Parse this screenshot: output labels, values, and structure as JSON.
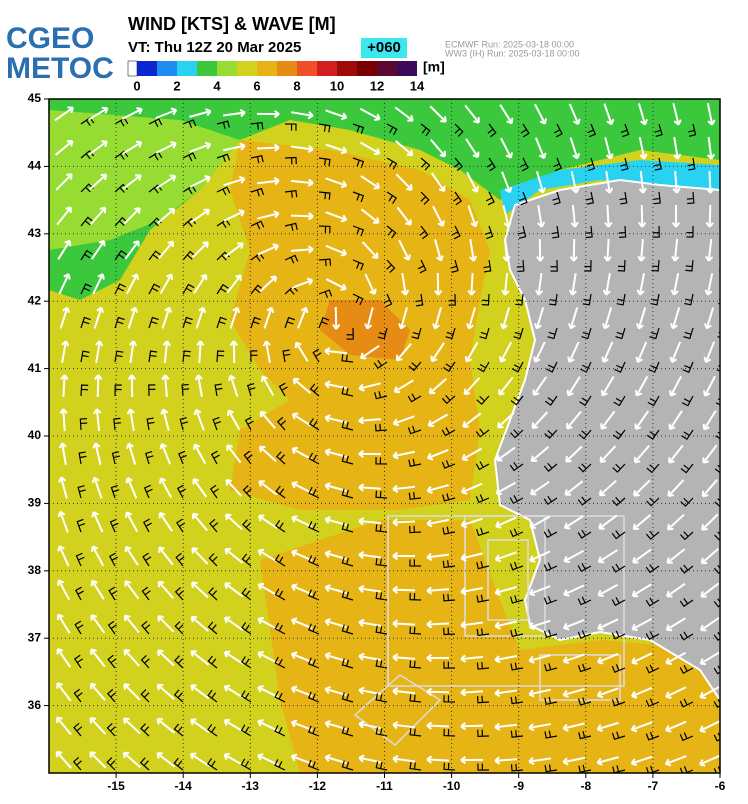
{
  "logo": [
    "CGEO",
    "METOC"
  ],
  "header": {
    "title": "WIND [KTS] & WAVE [M]",
    "valid_time": "VT: Thu 12Z 20 Mar 2025",
    "lead": "+060",
    "runs": [
      "ECMWF   Run: 2025-03-18 00:00",
      "WW3 (IH) Run: 2025-03-18 00:00"
    ]
  },
  "colorbar": {
    "unit": "[m]",
    "lim": [
      0,
      14
    ],
    "ticks": [
      0,
      2,
      4,
      6,
      8,
      10,
      12,
      14
    ],
    "colors": [
      "#0a28d2",
      "#1e8cf0",
      "#28d2f0",
      "#3cc83c",
      "#96dc32",
      "#d2d21e",
      "#e6b414",
      "#e68c14",
      "#f05028",
      "#d21e1e",
      "#a00a0a",
      "#780000",
      "#5a0a32",
      "#3c0a5a"
    ]
  },
  "map": {
    "lonlim": [
      -16,
      -6
    ],
    "latlim": [
      35,
      45
    ],
    "lon_ticks": [
      -15,
      -14,
      -13,
      -12,
      -11,
      -10,
      -9,
      -8,
      -7,
      -6
    ],
    "lat_ticks": [
      45,
      44,
      43,
      42,
      41,
      40,
      39,
      38,
      37,
      36
    ]
  }
}
